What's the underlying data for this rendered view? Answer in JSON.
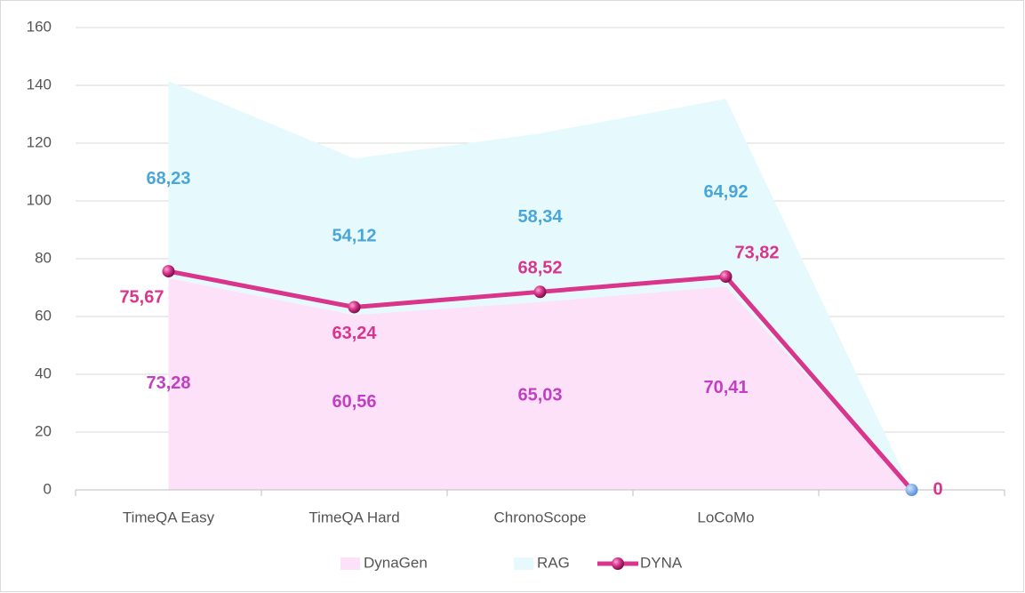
{
  "chart_data": {
    "type": "area",
    "stacked": true,
    "categories": [
      "TimeQA Easy",
      "TimeQA Hard",
      "ChronoScope",
      "LoCoMo",
      null
    ],
    "series": [
      {
        "name": "DynaGen",
        "type": "area",
        "color": "#fde1f8",
        "label_color": "#c23ec4",
        "values": [
          73.28,
          60.56,
          65.03,
          70.41,
          0
        ],
        "value_labels": [
          "73,28",
          "60,56",
          "65,03",
          "70,41",
          null
        ]
      },
      {
        "name": "RAG",
        "type": "area",
        "color": "#e6fafd",
        "label_color": "#4aa6d8",
        "values": [
          68.23,
          54.12,
          58.34,
          64.92,
          0
        ],
        "value_labels": [
          "68,23",
          "54,12",
          "58,34",
          "64,92",
          null
        ]
      },
      {
        "name": "DYNA",
        "type": "line",
        "stacked": false,
        "color": "#d9358c",
        "label_color": "#d9358c",
        "values": [
          75.67,
          63.24,
          68.52,
          73.82,
          0
        ],
        "value_labels": [
          "75,67",
          "63,24",
          "68,52",
          "73,82",
          "0"
        ]
      }
    ],
    "ylim": [
      0,
      160
    ],
    "yticks": [
      0,
      20,
      40,
      60,
      80,
      100,
      120,
      140,
      160
    ],
    "grid": true,
    "legend": "bottom"
  }
}
